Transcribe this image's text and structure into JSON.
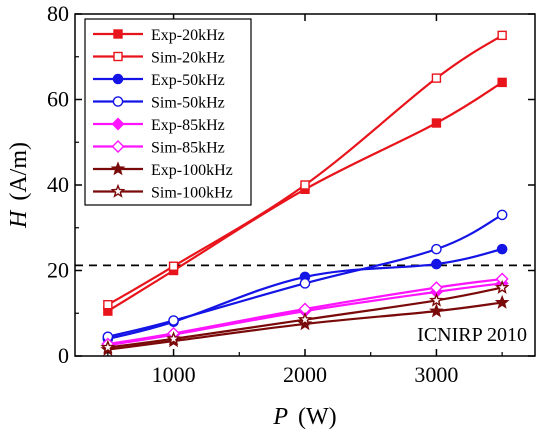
{
  "chart_data": {
    "type": "line",
    "xlabel": "P",
    "xunit": "(W)",
    "ylabel": "H",
    "yunit": "(A/m)",
    "xlim": [
      250,
      3750
    ],
    "ylim": [
      0,
      80
    ],
    "xticks": [
      1000,
      2000,
      3000
    ],
    "yticks": [
      0,
      20,
      40,
      60,
      80
    ],
    "x": [
      500,
      1000,
      2000,
      3000,
      3500
    ],
    "reference_line": {
      "value": 21.2,
      "style": "dashed",
      "label": "ICNIRP 2010"
    },
    "legend_position": "top-left",
    "series": [
      {
        "name": "Exp-20kHz",
        "color": "#e8141b",
        "marker": "square",
        "filled": true,
        "values": [
          10.5,
          20.0,
          39.0,
          54.5,
          64.0
        ]
      },
      {
        "name": "Sim-20kHz",
        "color": "#e8141b",
        "marker": "square",
        "filled": false,
        "values": [
          12.0,
          21.0,
          40.0,
          65.0,
          75.0
        ]
      },
      {
        "name": "Exp-50kHz",
        "color": "#1414e6",
        "marker": "circle",
        "filled": true,
        "values": [
          4.0,
          8.0,
          18.5,
          21.5,
          25.0
        ]
      },
      {
        "name": "Sim-50kHz",
        "color": "#1414e6",
        "marker": "circle",
        "filled": false,
        "values": [
          4.5,
          8.3,
          17.0,
          25.0,
          33.0
        ]
      },
      {
        "name": "Exp-85kHz",
        "color": "#ff14ff",
        "marker": "diamond",
        "filled": true,
        "values": [
          2.5,
          5.0,
          10.5,
          15.0,
          17.0
        ]
      },
      {
        "name": "Sim-85kHz",
        "color": "#ff14ff",
        "marker": "diamond",
        "filled": false,
        "values": [
          2.8,
          5.3,
          11.0,
          16.0,
          18.0
        ]
      },
      {
        "name": "Exp-100kHz",
        "color": "#7a0a0a",
        "marker": "star",
        "filled": true,
        "values": [
          1.5,
          3.5,
          7.5,
          10.5,
          12.5
        ]
      },
      {
        "name": "Sim-100kHz",
        "color": "#7a0a0a",
        "marker": "star",
        "filled": false,
        "values": [
          2.0,
          4.0,
          8.5,
          13.0,
          16.0
        ]
      }
    ]
  }
}
